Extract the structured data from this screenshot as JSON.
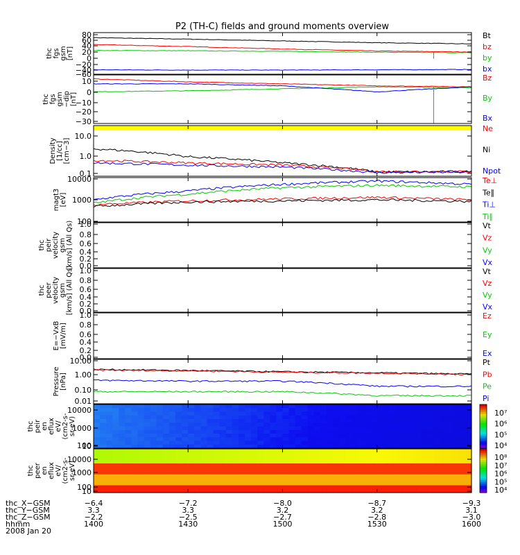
{
  "title": "P2 (TH-C) fields and ground moments overview",
  "chart_data": [
    {
      "type": "line",
      "ylabel": [
        "thc",
        "fgs",
        "gsm",
        "[nT]"
      ],
      "yticks": [
        "80",
        "60",
        "40",
        "20",
        "0",
        "−20",
        "−40",
        "−60"
      ],
      "ylim": [
        -60,
        80
      ],
      "legend": [
        {
          "label": "Bt",
          "color": "#000000"
        },
        {
          "label": "bz",
          "color": "#ff0000"
        },
        {
          "label": "by",
          "color": "#00cc00"
        },
        {
          "label": "bx",
          "color": "#0000ff"
        }
      ],
      "series": [
        {
          "name": "Bt",
          "color": "#000000",
          "x": [
            1400,
            1430,
            1500,
            1530,
            1600
          ],
          "y": [
            63,
            58,
            52,
            46,
            42
          ]
        },
        {
          "name": "bz",
          "color": "#ff0000",
          "x": [
            1400,
            1430,
            1500,
            1530,
            1600
          ],
          "y": [
            40,
            33,
            25,
            18,
            15
          ]
        },
        {
          "name": "by",
          "color": "#00cc00",
          "x": [
            1400,
            1430,
            1500,
            1530,
            1600
          ],
          "y": [
            20,
            19,
            17,
            14,
            12
          ]
        },
        {
          "name": "bx",
          "color": "#0000ff",
          "x": [
            1400,
            1430,
            1500,
            1530,
            1600
          ],
          "y": [
            -45,
            -46,
            -46,
            -45,
            -44
          ]
        }
      ]
    },
    {
      "type": "line",
      "ylabel": [
        "thc",
        "fgs",
        "gsm",
        "−dip",
        "[nT]"
      ],
      "yticks": [
        "10",
        "0",
        "−10",
        "−20",
        "−30"
      ],
      "ylim": [
        -35,
        14
      ],
      "legend": [
        {
          "label": "Bz",
          "color": "#ff0000"
        },
        {
          "label": "By",
          "color": "#00cc00"
        },
        {
          "label": "Bx",
          "color": "#0000ff"
        }
      ],
      "series": [
        {
          "name": "Bz",
          "color": "#ff0000",
          "x": [
            1400,
            1430,
            1500,
            1530,
            1600
          ],
          "y": [
            10,
            7,
            5,
            3,
            2
          ]
        },
        {
          "name": "By",
          "color": "#00cc00",
          "x": [
            1400,
            1430,
            1500,
            1530,
            1600
          ],
          "y": [
            -3,
            -2,
            0,
            2,
            1
          ]
        },
        {
          "name": "Bx",
          "color": "#0000ff",
          "x": [
            1400,
            1430,
            1500,
            1530,
            1600
          ],
          "y": [
            5,
            5,
            3,
            -3,
            2
          ]
        }
      ]
    },
    {
      "type": "line",
      "log": true,
      "ylabel": [
        "Density",
        "[1/cc]",
        "[cm−3]"
      ],
      "yticks": [
        "10.0",
        "1.0",
        "0.1"
      ],
      "ylim": [
        0.1,
        30
      ],
      "legend": [
        {
          "label": "Ne",
          "color": "#ff0000"
        },
        {
          "label": "Ni",
          "color": "#000000"
        },
        {
          "label": "Npot",
          "color": "#0000ff"
        }
      ],
      "series": [
        {
          "name": "Ni",
          "color": "#000000",
          "x": [
            1400,
            1430,
            1500,
            1530,
            1600
          ],
          "y": [
            2.2,
            0.9,
            0.45,
            0.16,
            0.17
          ]
        },
        {
          "name": "Ne",
          "color": "#ff0000",
          "x": [
            1400,
            1430,
            1500,
            1530,
            1600
          ],
          "y": [
            0.6,
            0.45,
            0.35,
            0.17,
            0.17
          ]
        },
        {
          "name": "Npot",
          "color": "#0000ff",
          "x": [
            1400,
            1430,
            1500,
            1530,
            1600
          ],
          "y": [
            0.45,
            0.35,
            0.28,
            0.15,
            0.16
          ]
        }
      ]
    },
    {
      "type": "line",
      "log": true,
      "ylabel": [
        "magt3",
        "[eV]"
      ],
      "yticks": [
        "10000",
        "1000",
        "100"
      ],
      "ylim": [
        100,
        10000
      ],
      "legend": [
        {
          "label": "Te⊥",
          "color": "#ff0000"
        },
        {
          "label": "Te∥",
          "color": "#000000"
        },
        {
          "label": "Ti⊥",
          "color": "#0000ff"
        },
        {
          "label": "Ti∥",
          "color": "#00cc00"
        }
      ],
      "series": [
        {
          "name": "Ti⊥",
          "color": "#0000ff",
          "x": [
            1400,
            1430,
            1500,
            1530,
            1600
          ],
          "y": [
            1000,
            2500,
            5000,
            7000,
            5000
          ]
        },
        {
          "name": "Ti∥",
          "color": "#00cc00",
          "x": [
            1400,
            1430,
            1500,
            1530,
            1600
          ],
          "y": [
            700,
            1800,
            3500,
            4500,
            3800
          ]
        },
        {
          "name": "Te⊥",
          "color": "#ff0000",
          "x": [
            1400,
            1430,
            1500,
            1530,
            1600
          ],
          "y": [
            600,
            900,
            1100,
            1300,
            1000
          ]
        },
        {
          "name": "Te∥",
          "color": "#000000",
          "x": [
            1400,
            1430,
            1500,
            1530,
            1600
          ],
          "y": [
            500,
            800,
            900,
            1000,
            850
          ]
        }
      ]
    },
    {
      "type": "line",
      "ylabel": [
        "thc",
        "peir",
        "velocity",
        "gsm",
        "[km/s] (All Qs)"
      ],
      "yticks": [
        "1.0",
        "0.8",
        "0.6",
        "0.4",
        "0.2",
        "0.0"
      ],
      "ylim": [
        0,
        1
      ],
      "legend": [
        {
          "label": "Vt",
          "color": "#000000"
        },
        {
          "label": "Vz",
          "color": "#ff0000"
        },
        {
          "label": "Vy",
          "color": "#00cc00"
        },
        {
          "label": "Vx",
          "color": "#0000ff"
        }
      ],
      "series": []
    },
    {
      "type": "line",
      "ylabel": [
        "thc",
        "peer",
        "velocity",
        "gsm",
        "[km/s] (All Qs)"
      ],
      "yticks": [
        "1.0",
        "0.8",
        "0.6",
        "0.4",
        "0.2",
        "0.0"
      ],
      "ylim": [
        0,
        1
      ],
      "legend": [
        {
          "label": "Vt",
          "color": "#000000"
        },
        {
          "label": "Vz",
          "color": "#ff0000"
        },
        {
          "label": "Vy",
          "color": "#00cc00"
        },
        {
          "label": "Vx",
          "color": "#0000ff"
        }
      ],
      "series": []
    },
    {
      "type": "line",
      "ylabel": [
        "E=−VxB",
        "[mV/m]"
      ],
      "yticks": [
        "1.0",
        "0.8",
        "0.6",
        "0.4",
        "0.2",
        "0.0"
      ],
      "ylim": [
        0,
        1
      ],
      "legend": [
        {
          "label": "Ez",
          "color": "#ff0000"
        },
        {
          "label": "Ey",
          "color": "#00cc00"
        },
        {
          "label": "Ex",
          "color": "#0000ff"
        }
      ],
      "series": []
    },
    {
      "type": "line",
      "log": true,
      "ylabel": [
        "Pressure",
        "[nPa]"
      ],
      "yticks": [
        "10.00",
        "1.00",
        "0.10",
        "0.01"
      ],
      "ylim": [
        0.005,
        10
      ],
      "legend": [
        {
          "label": "Pt",
          "color": "#000000"
        },
        {
          "label": "Pb",
          "color": "#ff0000"
        },
        {
          "label": "Pe",
          "color": "#00cc00"
        },
        {
          "label": "Pi",
          "color": "#0000ff"
        }
      ],
      "series": [
        {
          "name": "Pt",
          "color": "#000000",
          "x": [
            1400,
            1430,
            1500,
            1530,
            1600
          ],
          "y": [
            1.8,
            1.5,
            1.2,
            1.0,
            0.8
          ]
        },
        {
          "name": "Pb",
          "color": "#ff0000",
          "x": [
            1400,
            1430,
            1500,
            1530,
            1600
          ],
          "y": [
            1.6,
            1.4,
            1.1,
            0.95,
            0.75
          ]
        },
        {
          "name": "Pi",
          "color": "#0000ff",
          "x": [
            1400,
            1430,
            1500,
            1530,
            1600
          ],
          "y": [
            0.28,
            0.24,
            0.24,
            0.1,
            0.1
          ]
        },
        {
          "name": "Pe",
          "color": "#00cc00",
          "x": [
            1400,
            1430,
            1500,
            1530,
            1600
          ],
          "y": [
            0.04,
            0.04,
            0.04,
            0.02,
            0.02
          ]
        }
      ]
    },
    {
      "type": "heatmap",
      "ylabel": [
        "thc",
        "peir",
        "en",
        "eflux",
        "eV/",
        "(cm2-s-",
        "sr-eV)"
      ],
      "yticks": [
        "10000",
        "1000",
        "100",
        "10"
      ],
      "colorbar_ticks": [
        "10⁷",
        "10⁶",
        "10⁵",
        "10⁴"
      ]
    },
    {
      "type": "heatmap",
      "ylabel": [
        "thc",
        "peer",
        "en",
        "eflux",
        "eV/",
        "(cm2-s-",
        "sr-eV)"
      ],
      "yticks": [
        "10000",
        "1000",
        "100",
        "10"
      ],
      "colorbar_ticks": [
        "10⁸",
        "10⁷",
        "10⁶",
        "10⁵",
        "10⁴"
      ]
    }
  ],
  "x_axis": {
    "rows": [
      {
        "label": "thc_X−GSM",
        "values": [
          "−6.4",
          "−7.2",
          "−8.0",
          "−8.7",
          "−9.3"
        ]
      },
      {
        "label": "thc_Y−GSM",
        "values": [
          "3.3",
          "3.3",
          "3.2",
          "3.2",
          "3.1"
        ]
      },
      {
        "label": "thc_Z−GSM",
        "values": [
          "−2.2",
          "−2.5",
          "−2.7",
          "−2.8",
          "−3.0"
        ]
      },
      {
        "label": "hhmm",
        "values": [
          "1400",
          "1430",
          "1500",
          "1530",
          "1600"
        ]
      }
    ],
    "date": "2008 Jan 20"
  }
}
